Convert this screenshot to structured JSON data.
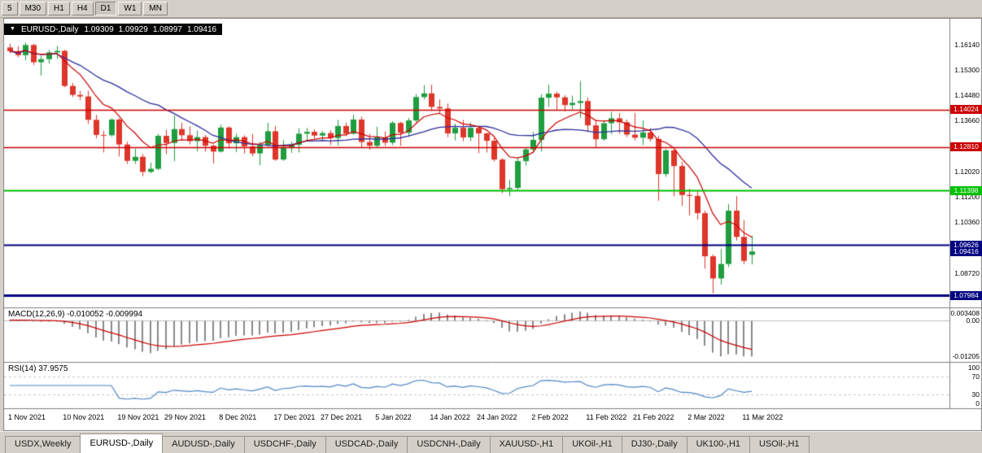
{
  "toolbar": {
    "timeframes": [
      "5",
      "M30",
      "H1",
      "H4",
      "D1",
      "W1",
      "MN"
    ],
    "active": "D1"
  },
  "chart": {
    "title": {
      "collapse_icon": "▼",
      "symbol": "EURUSD-,Daily",
      "o": "1.09309",
      "h": "1.09929",
      "l": "1.08997",
      "c": "1.09416"
    },
    "price_axis": {
      "top": 1.17,
      "bottom": 1.076,
      "labels": [
        "1.16140",
        "1.15300",
        "1.14480",
        "1.13660",
        "1.12020",
        "1.11200",
        "1.10360",
        "1.08720"
      ]
    },
    "levels": [
      {
        "price": 1.14024,
        "label": "1.14024",
        "color": "#cc0000",
        "width": 1.5
      },
      {
        "price": 1.1281,
        "label": "1.12810",
        "color": "#cc0000",
        "width": 1.5
      },
      {
        "price": 1.11398,
        "label": "1.11398",
        "color": "#00c000",
        "width": 2
      },
      {
        "price": 1.09626,
        "label": "1.09626",
        "color": "#000080",
        "width": 2
      },
      {
        "price": 1.07984,
        "label": "1.07984",
        "color": "#000080",
        "width": 3
      }
    ],
    "bid_tag": {
      "price": 1.09416,
      "label": "1.09416",
      "color": "#000080"
    },
    "date_labels": [
      {
        "text": "1 Nov 2021",
        "i": 0
      },
      {
        "text": "10 Nov 2021",
        "i": 7
      },
      {
        "text": "19 Nov 2021",
        "i": 14
      },
      {
        "text": "29 Nov 2021",
        "i": 20
      },
      {
        "text": "8 Dec 2021",
        "i": 27
      },
      {
        "text": "17 Dec 2021",
        "i": 34
      },
      {
        "text": "27 Dec 2021",
        "i": 40
      },
      {
        "text": "5 Jan 2022",
        "i": 47
      },
      {
        "text": "14 Jan 2022",
        "i": 54
      },
      {
        "text": "24 Jan 2022",
        "i": 60
      },
      {
        "text": "2 Feb 2022",
        "i": 67
      },
      {
        "text": "11 Feb 2022",
        "i": 74
      },
      {
        "text": "21 Feb 2022",
        "i": 80
      },
      {
        "text": "2 Mar 2022",
        "i": 87
      },
      {
        "text": "11 Mar 2022",
        "i": 94
      }
    ]
  },
  "macd_panel": {
    "label": "MACD(12,26,9) -0.010052 -0.009994",
    "value_main": -0.010052,
    "value_signal": -0.009994,
    "scale_max": 0.003408,
    "scale_min": -0.01205,
    "axis_labels": [
      {
        "text": "0.003408",
        "value": 0.003408
      },
      {
        "text": "0.00",
        "value": 0
      },
      {
        "text": "-0.01205",
        "value": -0.01205
      }
    ]
  },
  "rsi_panel": {
    "label": "RSI(14) 37.9575",
    "value": 37.9575,
    "axis_labels": [
      {
        "text": "100",
        "value": 100
      },
      {
        "text": "70",
        "value": 70
      },
      {
        "text": "30",
        "value": 30
      },
      {
        "text": "0",
        "value": 0
      }
    ],
    "dashed_levels": [
      70,
      30
    ]
  },
  "tabs": {
    "items": [
      "USDX,Weekly",
      "EURUSD-,Daily",
      "AUDUSD-,Daily",
      "USDCHF-,Daily",
      "USDCAD-,Daily",
      "USDCNH-,Daily",
      "XAUUSD-,H1",
      "UKOil-,H1",
      "DJ30-,Daily",
      "UK100-,H1",
      "USOil-,H1"
    ],
    "active": "EURUSD-,Daily"
  },
  "colors": {
    "bull": "#1f9d3f",
    "bear": "#de362a",
    "ma_fast_red": "#cc0000",
    "ma_slow_blue": "#2d2d9e",
    "macd_hist": "#8a8a8a",
    "macd_signal": "#cc0000",
    "macd_zero": "#c0c0c0",
    "rsi_line": "#4f86c6",
    "rsi_dash": "#c8c8c8",
    "frame": "#808080",
    "chart_bg": "#ffffff",
    "chrome": "#d4d0c8"
  },
  "chart_data": {
    "type": "candlestick",
    "symbol": "EURUSD-",
    "timeframe": "Daily",
    "last_ohlc": {
      "o": 1.09309,
      "h": 1.09929,
      "l": 1.08997,
      "c": 1.09416
    },
    "moving_averages": [
      {
        "type": "sma",
        "period": 20,
        "color_key": "ma_slow_blue"
      },
      {
        "type": "ema",
        "period": 8,
        "color_key": "ma_fast_red"
      }
    ],
    "indicators": [
      "MACD(12,26,9)",
      "RSI(14)"
    ],
    "candles": [
      [
        1.1604,
        1.1616,
        1.1585,
        1.1592
      ],
      [
        1.1592,
        1.1608,
        1.1572,
        1.1579
      ],
      [
        1.1579,
        1.162,
        1.1562,
        1.1612
      ],
      [
        1.1612,
        1.1616,
        1.1547,
        1.1556
      ],
      [
        1.1556,
        1.1577,
        1.1513,
        1.1566
      ],
      [
        1.1566,
        1.1596,
        1.1552,
        1.1588
      ],
      [
        1.1588,
        1.1609,
        1.1567,
        1.1593
      ],
      [
        1.1593,
        1.1596,
        1.1475,
        1.1479
      ],
      [
        1.1479,
        1.1488,
        1.1443,
        1.145
      ],
      [
        1.145,
        1.1463,
        1.1433,
        1.1445
      ],
      [
        1.1445,
        1.1464,
        1.1356,
        1.1369
      ],
      [
        1.1369,
        1.1385,
        1.1309,
        1.132
      ],
      [
        1.132,
        1.1333,
        1.1263,
        1.1319
      ],
      [
        1.1319,
        1.1374,
        1.1314,
        1.137
      ],
      [
        1.137,
        1.1374,
        1.125,
        1.1289
      ],
      [
        1.1289,
        1.1298,
        1.1226,
        1.1236
      ],
      [
        1.1236,
        1.1275,
        1.1226,
        1.1249
      ],
      [
        1.1249,
        1.1258,
        1.1186,
        1.12
      ],
      [
        1.12,
        1.123,
        1.1196,
        1.121
      ],
      [
        1.121,
        1.1323,
        1.1206,
        1.1317
      ],
      [
        1.1317,
        1.1336,
        1.1258,
        1.1294
      ],
      [
        1.1294,
        1.1383,
        1.1235,
        1.1339
      ],
      [
        1.1339,
        1.136,
        1.1302,
        1.1319
      ],
      [
        1.1319,
        1.1348,
        1.1289,
        1.13
      ],
      [
        1.13,
        1.1334,
        1.1267,
        1.1313
      ],
      [
        1.1313,
        1.132,
        1.1266,
        1.1285
      ],
      [
        1.1285,
        1.1289,
        1.1228,
        1.1266
      ],
      [
        1.1266,
        1.1354,
        1.1263,
        1.1344
      ],
      [
        1.1344,
        1.1348,
        1.1277,
        1.1293
      ],
      [
        1.1293,
        1.1324,
        1.1264,
        1.1313
      ],
      [
        1.1313,
        1.1319,
        1.126,
        1.1283
      ],
      [
        1.1283,
        1.1323,
        1.1251,
        1.126
      ],
      [
        1.126,
        1.1298,
        1.1221,
        1.1287
      ],
      [
        1.1287,
        1.136,
        1.1282,
        1.1332
      ],
      [
        1.1332,
        1.1349,
        1.1236,
        1.124
      ],
      [
        1.124,
        1.1303,
        1.1236,
        1.1278
      ],
      [
        1.1278,
        1.1298,
        1.1262,
        1.1288
      ],
      [
        1.1288,
        1.1342,
        1.1263,
        1.1324
      ],
      [
        1.1324,
        1.1343,
        1.1301,
        1.133
      ],
      [
        1.133,
        1.1338,
        1.1308,
        1.1318
      ],
      [
        1.1318,
        1.1333,
        1.1304,
        1.1326
      ],
      [
        1.1326,
        1.1335,
        1.1287,
        1.131
      ],
      [
        1.131,
        1.1369,
        1.1286,
        1.1349
      ],
      [
        1.1349,
        1.136,
        1.1316,
        1.1324
      ],
      [
        1.1324,
        1.1386,
        1.1321,
        1.137
      ],
      [
        1.137,
        1.1379,
        1.1279,
        1.1297
      ],
      [
        1.1297,
        1.1323,
        1.1272,
        1.1285
      ],
      [
        1.1285,
        1.1347,
        1.128,
        1.1312
      ],
      [
        1.1312,
        1.1332,
        1.1285,
        1.1295
      ],
      [
        1.1295,
        1.1365,
        1.1287,
        1.1359
      ],
      [
        1.1359,
        1.1363,
        1.1285,
        1.1327
      ],
      [
        1.1327,
        1.1375,
        1.1314,
        1.1367
      ],
      [
        1.1367,
        1.1453,
        1.136,
        1.1443
      ],
      [
        1.1443,
        1.1482,
        1.1435,
        1.1455
      ],
      [
        1.1455,
        1.1483,
        1.1398,
        1.1411
      ],
      [
        1.1411,
        1.1435,
        1.1391,
        1.1406
      ],
      [
        1.1406,
        1.1422,
        1.1313,
        1.1325
      ],
      [
        1.1325,
        1.1357,
        1.1302,
        1.1343
      ],
      [
        1.1343,
        1.1369,
        1.13,
        1.1312
      ],
      [
        1.1312,
        1.136,
        1.13,
        1.1343
      ],
      [
        1.1343,
        1.1349,
        1.1261,
        1.1325
      ],
      [
        1.1325,
        1.1327,
        1.1263,
        1.1301
      ],
      [
        1.1301,
        1.131,
        1.1234,
        1.124
      ],
      [
        1.124,
        1.1245,
        1.1131,
        1.1144
      ],
      [
        1.1144,
        1.1174,
        1.1121,
        1.1148
      ],
      [
        1.1148,
        1.1246,
        1.1141,
        1.1235
      ],
      [
        1.1235,
        1.1279,
        1.1221,
        1.1273
      ],
      [
        1.1273,
        1.133,
        1.1267,
        1.1304
      ],
      [
        1.1304,
        1.1452,
        1.1266,
        1.1441
      ],
      [
        1.1441,
        1.1483,
        1.1411,
        1.1454
      ],
      [
        1.1454,
        1.146,
        1.14,
        1.1442
      ],
      [
        1.1442,
        1.1449,
        1.1396,
        1.1417
      ],
      [
        1.1417,
        1.1448,
        1.1403,
        1.1424
      ],
      [
        1.1424,
        1.1495,
        1.1375,
        1.143
      ],
      [
        1.143,
        1.1441,
        1.1329,
        1.1351
      ],
      [
        1.1351,
        1.1369,
        1.1278,
        1.1306
      ],
      [
        1.1306,
        1.1368,
        1.1301,
        1.1358
      ],
      [
        1.1358,
        1.1395,
        1.1323,
        1.1374
      ],
      [
        1.1374,
        1.1391,
        1.1324,
        1.1361
      ],
      [
        1.1361,
        1.137,
        1.1313,
        1.1321
      ],
      [
        1.1321,
        1.1391,
        1.1302,
        1.1311
      ],
      [
        1.1311,
        1.1367,
        1.1287,
        1.1328
      ],
      [
        1.1328,
        1.1343,
        1.1299,
        1.1307
      ],
      [
        1.1307,
        1.1317,
        1.1106,
        1.1193
      ],
      [
        1.1193,
        1.1274,
        1.1184,
        1.127
      ],
      [
        1.127,
        1.1272,
        1.1121,
        1.1219
      ],
      [
        1.1219,
        1.1233,
        1.109,
        1.1125
      ],
      [
        1.1125,
        1.1145,
        1.1058,
        1.1122
      ],
      [
        1.1122,
        1.1139,
        1.1045,
        1.1066
      ],
      [
        1.1066,
        1.1074,
        1.0886,
        1.0926
      ],
      [
        1.0926,
        1.0932,
        1.0806,
        1.0854
      ],
      [
        1.0854,
        1.095,
        1.0834,
        1.0901
      ],
      [
        1.0901,
        1.1095,
        1.0891,
        1.1074
      ],
      [
        1.1074,
        1.1121,
        1.0977,
        1.0989
      ],
      [
        1.0989,
        1.1043,
        1.09,
        1.0911
      ],
      [
        1.09309,
        1.09929,
        1.08997,
        1.09416
      ]
    ]
  }
}
